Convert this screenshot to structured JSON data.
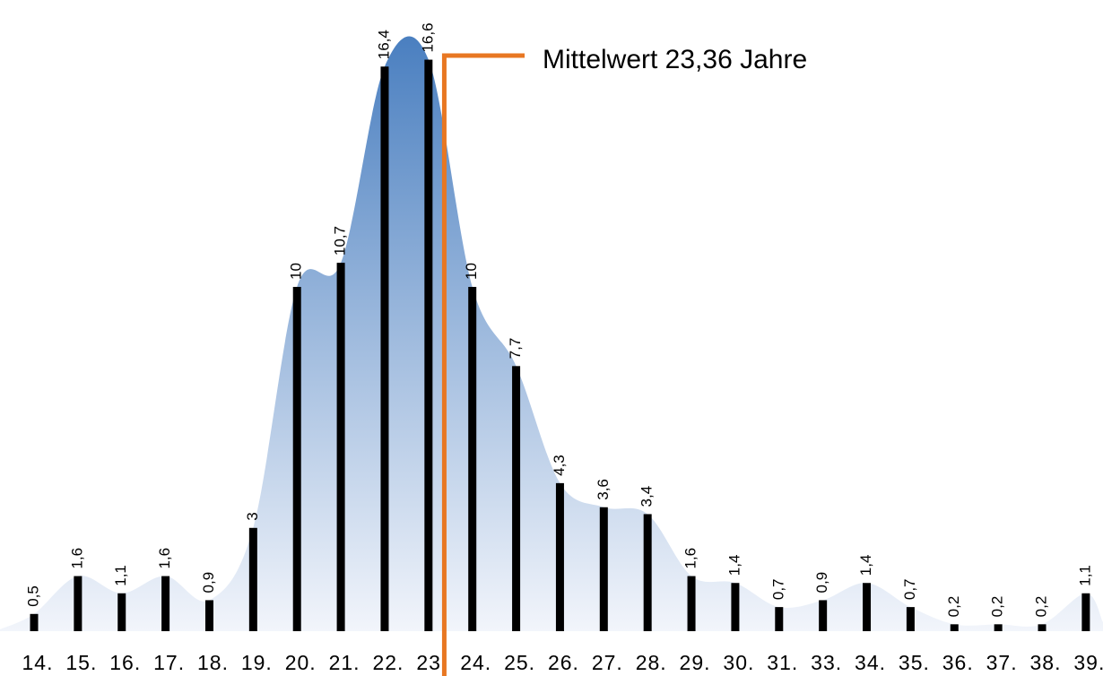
{
  "chart_data": {
    "type": "bar",
    "categories": [
      "14.",
      "15.",
      "16.",
      "17.",
      "18.",
      "19.",
      "20.",
      "21.",
      "22.",
      "23.",
      "24.",
      "25.",
      "26.",
      "27.",
      "28.",
      "29.",
      "30.",
      "31.",
      "33.",
      "34.",
      "35.",
      "36.",
      "37.",
      "38.",
      "39."
    ],
    "values": [
      0.5,
      1.6,
      1.1,
      1.6,
      0.9,
      3,
      10,
      10.7,
      16.4,
      16.6,
      10,
      7.7,
      4.3,
      3.6,
      3.4,
      1.6,
      1.4,
      0.7,
      0.9,
      1.4,
      0.7,
      0.2,
      0.2,
      0.2,
      1.1
    ],
    "value_labels": [
      "0,5",
      "1,6",
      "1,1",
      "1,6",
      "0,9",
      "3",
      "10",
      "10,7",
      "16,4",
      "16,6",
      "10",
      "7,7",
      "4,3",
      "3,6",
      "3,4",
      "1,6",
      "1,4",
      "0,7",
      "0,9",
      "1,4",
      "0,7",
      "0,2",
      "0,2",
      "0,2",
      "1,1"
    ],
    "color": "#000000",
    "mean": {
      "value": 23.36,
      "label": "Mittelwert 23,36 Jahre",
      "color": "#e87722"
    }
  }
}
